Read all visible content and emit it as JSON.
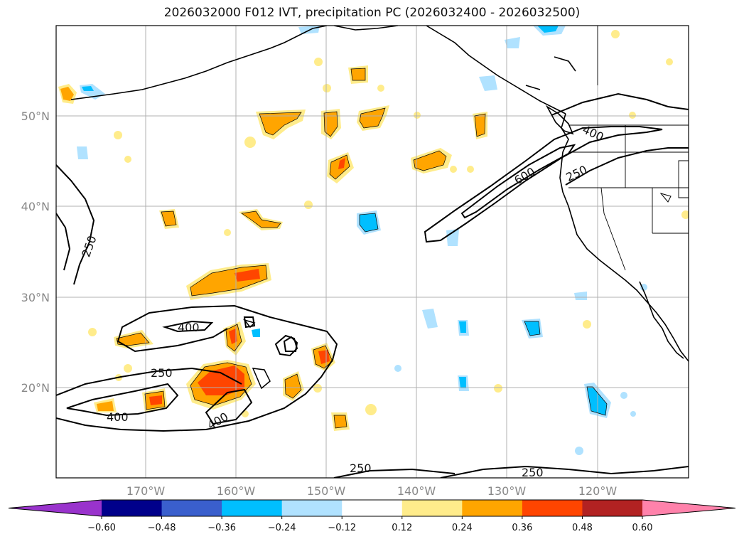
{
  "title": "2026032000 F012 IVT, precipitation PC (2026032400 - 2026032500)",
  "lat_labels": [
    "50°N",
    "40°N",
    "30°N",
    "20°N"
  ],
  "lon_labels": [
    "170°W",
    "160°W",
    "150°W",
    "140°W",
    "130°W",
    "120°W"
  ],
  "contour_labels": [
    "250",
    "400",
    "250",
    "400",
    "400",
    "250",
    "250",
    "600",
    "400",
    "250"
  ],
  "colorbar": {
    "ticks": [
      "−0.60",
      "−0.48",
      "−0.36",
      "−0.24",
      "−0.12",
      "0.12",
      "0.24",
      "0.36",
      "0.48",
      "0.60"
    ],
    "colors": [
      "#9933cc",
      "#00008b",
      "#3a5fcd",
      "#00bfff",
      "#b0e2ff",
      "#ffffff",
      "#ffec8b",
      "#ffa500",
      "#ff4500",
      "#b22222",
      "#ff82ab"
    ]
  }
}
